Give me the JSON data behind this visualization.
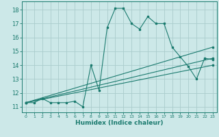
{
  "xlabel": "Humidex (Indice chaleur)",
  "ylabel": "",
  "background_color": "#cce8e8",
  "grid_color": "#aacccc",
  "line_color": "#1a7a6e",
  "xlim": [
    -0.5,
    23.5
  ],
  "ylim": [
    10.6,
    18.6
  ],
  "xticks": [
    0,
    1,
    2,
    3,
    4,
    5,
    6,
    7,
    8,
    9,
    10,
    11,
    12,
    13,
    14,
    15,
    16,
    17,
    18,
    19,
    20,
    21,
    22,
    23
  ],
  "yticks": [
    11,
    12,
    13,
    14,
    15,
    16,
    17,
    18
  ],
  "series1_x": [
    0,
    1,
    2,
    3,
    4,
    5,
    6,
    7,
    8,
    9,
    10,
    11,
    12,
    13,
    14,
    15,
    16,
    17,
    18,
    19,
    20,
    21,
    22,
    23
  ],
  "series1_y": [
    11.3,
    11.3,
    11.6,
    11.3,
    11.3,
    11.3,
    11.4,
    11.0,
    14.0,
    12.2,
    16.7,
    18.1,
    18.1,
    17.0,
    16.6,
    17.5,
    17.0,
    17.0,
    15.3,
    14.6,
    13.9,
    13.0,
    14.5,
    14.4
  ],
  "series2_x": [
    0,
    23
  ],
  "series2_y": [
    11.3,
    15.3
  ],
  "series3_x": [
    0,
    23
  ],
  "series3_y": [
    11.3,
    14.5
  ],
  "series4_x": [
    0,
    23
  ],
  "series4_y": [
    11.3,
    14.0
  ]
}
